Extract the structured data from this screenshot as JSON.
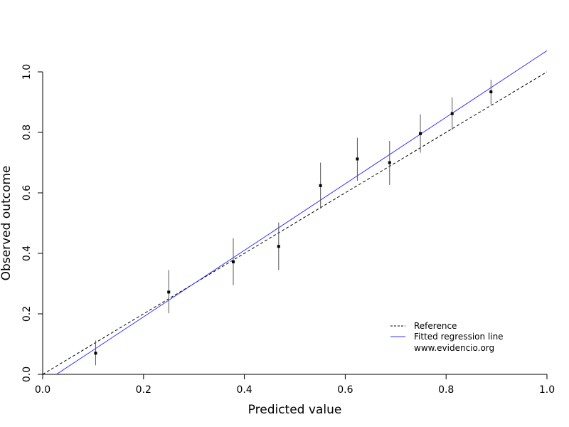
{
  "chart_data": {
    "type": "scatter",
    "xlabel": "Predicted value",
    "ylabel": "Observed outcome",
    "xlim": [
      0,
      1
    ],
    "ylim": [
      0,
      1
    ],
    "x_ticks": [
      0.0,
      0.2,
      0.4,
      0.6,
      0.8,
      1.0
    ],
    "y_ticks": [
      0.0,
      0.2,
      0.4,
      0.6,
      0.8,
      1.0
    ],
    "x_tick_labels": [
      "0.0",
      "0.2",
      "0.4",
      "0.6",
      "0.8",
      "1.0"
    ],
    "y_tick_labels": [
      "0.0",
      "0.2",
      "0.4",
      "0.6",
      "0.8",
      "1.0"
    ],
    "grid": false,
    "legend_position": "bottom-right",
    "legend": {
      "reference_label": "Reference",
      "fitted_label": "Fitted regression line",
      "note": "www.evidencio.org"
    },
    "reference_line": {
      "x": [
        0,
        1
      ],
      "y": [
        0,
        1
      ],
      "style": "dashed",
      "color": "#000000"
    },
    "fitted_line": {
      "x": [
        0,
        1
      ],
      "y": [
        -0.03,
        1.07
      ],
      "color": "#3333ff"
    },
    "points": [
      {
        "x": 0.105,
        "y": 0.07,
        "lower": 0.03,
        "upper": 0.112
      },
      {
        "x": 0.25,
        "y": 0.272,
        "lower": 0.202,
        "upper": 0.345
      },
      {
        "x": 0.378,
        "y": 0.372,
        "lower": 0.295,
        "upper": 0.45
      },
      {
        "x": 0.468,
        "y": 0.423,
        "lower": 0.345,
        "upper": 0.502
      },
      {
        "x": 0.551,
        "y": 0.624,
        "lower": 0.548,
        "upper": 0.7
      },
      {
        "x": 0.624,
        "y": 0.712,
        "lower": 0.64,
        "upper": 0.782
      },
      {
        "x": 0.688,
        "y": 0.7,
        "lower": 0.626,
        "upper": 0.772
      },
      {
        "x": 0.749,
        "y": 0.796,
        "lower": 0.733,
        "upper": 0.86
      },
      {
        "x": 0.812,
        "y": 0.862,
        "lower": 0.808,
        "upper": 0.916
      },
      {
        "x": 0.889,
        "y": 0.934,
        "lower": 0.893,
        "upper": 0.974
      }
    ]
  }
}
